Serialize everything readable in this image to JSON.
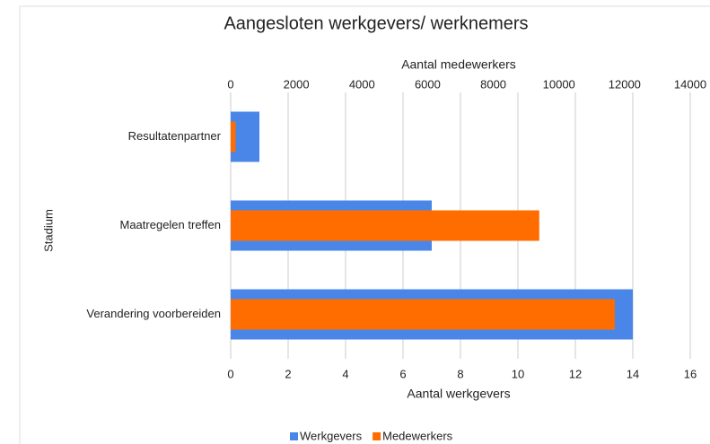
{
  "chart_data": {
    "type": "bar",
    "orientation": "horizontal",
    "title": "Aangesloten werkgevers/ werknemers",
    "xlabel": "Aantal werkgevers",
    "x2label": "Aantal medewerkers",
    "ylabel": "Stadium",
    "categories": [
      "Resultatenpartner",
      "Maatregelen treffen",
      "Verandering voorbereiden"
    ],
    "series": [
      {
        "name": "Werkgevers",
        "color": "#4a86e8",
        "values": [
          1,
          7,
          14
        ]
      },
      {
        "name": "Medewerkers",
        "color": "#ff6d01",
        "axis": "x2",
        "values": [
          150,
          9400,
          11700
        ]
      }
    ],
    "xlim": [
      0,
      16
    ],
    "xticks": [
      0,
      2,
      4,
      6,
      8,
      10,
      12,
      14,
      16
    ],
    "x2lim": [
      0,
      14000
    ],
    "x2ticks": [
      0,
      2000,
      4000,
      6000,
      8000,
      10000,
      12000,
      14000
    ],
    "grid": true,
    "legend": "bottom"
  }
}
